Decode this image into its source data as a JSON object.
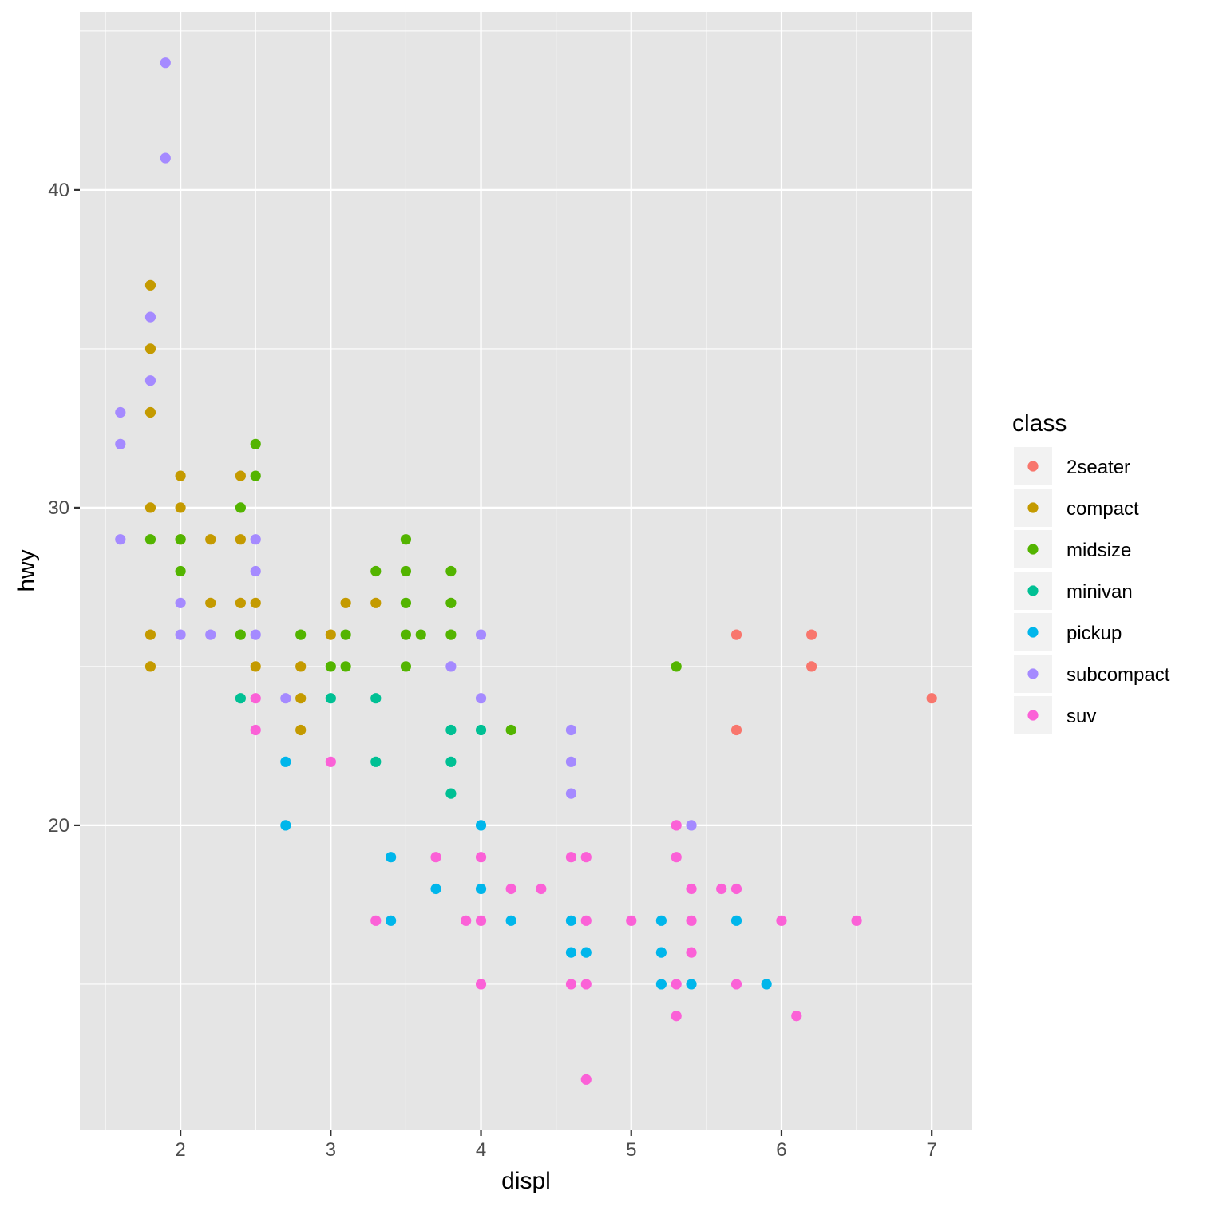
{
  "chart_data": {
    "type": "scatter",
    "xlabel": "displ",
    "ylabel": "hwy",
    "xlim": [
      1.33,
      7.27
    ],
    "ylim": [
      10.4,
      45.6
    ],
    "x_ticks": [
      2,
      3,
      4,
      5,
      6,
      7
    ],
    "y_ticks": [
      20,
      30,
      40
    ],
    "x_tick_labels": [
      "2",
      "3",
      "4",
      "5",
      "6",
      "7"
    ],
    "y_tick_labels": [
      "20",
      "30",
      "40"
    ],
    "grid": true,
    "legend": {
      "title": "class",
      "placement": "right"
    },
    "colors": {
      "panel_background": "#e5e5e5",
      "grid": "#ffffff"
    },
    "series": [
      {
        "name": "2seater",
        "color": "#f8766d",
        "points": [
          [
            5.7,
            26
          ],
          [
            5.7,
            23
          ],
          [
            6.2,
            26
          ],
          [
            6.2,
            25
          ],
          [
            7.0,
            24
          ]
        ]
      },
      {
        "name": "compact",
        "color": "#c49a00",
        "points": [
          [
            1.8,
            37
          ],
          [
            1.8,
            35
          ],
          [
            1.8,
            33
          ],
          [
            1.8,
            30
          ],
          [
            1.8,
            26
          ],
          [
            1.8,
            25
          ],
          [
            2.0,
            31
          ],
          [
            2.0,
            30
          ],
          [
            2.0,
            29
          ],
          [
            2.2,
            29
          ],
          [
            2.2,
            27
          ],
          [
            2.4,
            31
          ],
          [
            2.4,
            29
          ],
          [
            2.4,
            27
          ],
          [
            2.5,
            27
          ],
          [
            2.5,
            25
          ],
          [
            2.8,
            25
          ],
          [
            2.8,
            24
          ],
          [
            2.8,
            23
          ],
          [
            3.0,
            26
          ],
          [
            3.1,
            27
          ],
          [
            3.3,
            27
          ]
        ]
      },
      {
        "name": "midsize",
        "color": "#53b400",
        "points": [
          [
            1.8,
            29
          ],
          [
            2.0,
            29
          ],
          [
            2.0,
            28
          ],
          [
            2.4,
            30
          ],
          [
            2.4,
            26
          ],
          [
            2.5,
            32
          ],
          [
            2.5,
            31
          ],
          [
            2.8,
            26
          ],
          [
            3.0,
            25
          ],
          [
            3.1,
            26
          ],
          [
            3.1,
            25
          ],
          [
            3.3,
            28
          ],
          [
            3.5,
            29
          ],
          [
            3.5,
            28
          ],
          [
            3.5,
            27
          ],
          [
            3.5,
            26
          ],
          [
            3.5,
            25
          ],
          [
            3.6,
            26
          ],
          [
            3.8,
            28
          ],
          [
            3.8,
            27
          ],
          [
            3.8,
            26
          ],
          [
            4.2,
            23
          ],
          [
            5.3,
            25
          ]
        ]
      },
      {
        "name": "minivan",
        "color": "#00c094",
        "points": [
          [
            2.4,
            24
          ],
          [
            3.0,
            24
          ],
          [
            3.3,
            24
          ],
          [
            3.3,
            22
          ],
          [
            3.8,
            23
          ],
          [
            3.8,
            22
          ],
          [
            3.8,
            21
          ],
          [
            4.0,
            23
          ]
        ]
      },
      {
        "name": "pickup",
        "color": "#00b6eb",
        "points": [
          [
            2.7,
            22
          ],
          [
            2.7,
            20
          ],
          [
            3.4,
            19
          ],
          [
            3.4,
            17
          ],
          [
            3.7,
            18
          ],
          [
            4.0,
            20
          ],
          [
            4.0,
            18
          ],
          [
            4.2,
            17
          ],
          [
            4.6,
            17
          ],
          [
            4.6,
            16
          ],
          [
            4.7,
            16
          ],
          [
            5.2,
            17
          ],
          [
            5.2,
            16
          ],
          [
            5.2,
            15
          ],
          [
            5.4,
            15
          ],
          [
            5.7,
            17
          ],
          [
            5.9,
            15
          ]
        ]
      },
      {
        "name": "subcompact",
        "color": "#a58aff",
        "points": [
          [
            1.6,
            33
          ],
          [
            1.6,
            32
          ],
          [
            1.6,
            29
          ],
          [
            1.8,
            36
          ],
          [
            1.8,
            34
          ],
          [
            1.9,
            44
          ],
          [
            1.9,
            41
          ],
          [
            2.0,
            27
          ],
          [
            2.0,
            26
          ],
          [
            2.2,
            26
          ],
          [
            2.5,
            29
          ],
          [
            2.5,
            28
          ],
          [
            2.5,
            26
          ],
          [
            2.7,
            24
          ],
          [
            3.8,
            25
          ],
          [
            4.0,
            26
          ],
          [
            4.0,
            24
          ],
          [
            4.6,
            23
          ],
          [
            4.6,
            22
          ],
          [
            4.6,
            21
          ],
          [
            5.4,
            20
          ]
        ]
      },
      {
        "name": "suv",
        "color": "#fb61d7",
        "points": [
          [
            2.5,
            24
          ],
          [
            2.5,
            23
          ],
          [
            3.0,
            22
          ],
          [
            3.3,
            17
          ],
          [
            3.7,
            19
          ],
          [
            3.9,
            17
          ],
          [
            4.0,
            19
          ],
          [
            4.0,
            17
          ],
          [
            4.0,
            15
          ],
          [
            4.2,
            18
          ],
          [
            4.4,
            18
          ],
          [
            4.6,
            19
          ],
          [
            4.6,
            15
          ],
          [
            4.7,
            19
          ],
          [
            4.7,
            17
          ],
          [
            4.7,
            15
          ],
          [
            4.7,
            12
          ],
          [
            5.0,
            17
          ],
          [
            5.3,
            20
          ],
          [
            5.3,
            19
          ],
          [
            5.3,
            15
          ],
          [
            5.3,
            14
          ],
          [
            5.4,
            18
          ],
          [
            5.4,
            17
          ],
          [
            5.4,
            16
          ],
          [
            5.6,
            18
          ],
          [
            5.7,
            18
          ],
          [
            5.7,
            15
          ],
          [
            6.0,
            17
          ],
          [
            6.1,
            14
          ],
          [
            6.5,
            17
          ]
        ]
      }
    ]
  }
}
